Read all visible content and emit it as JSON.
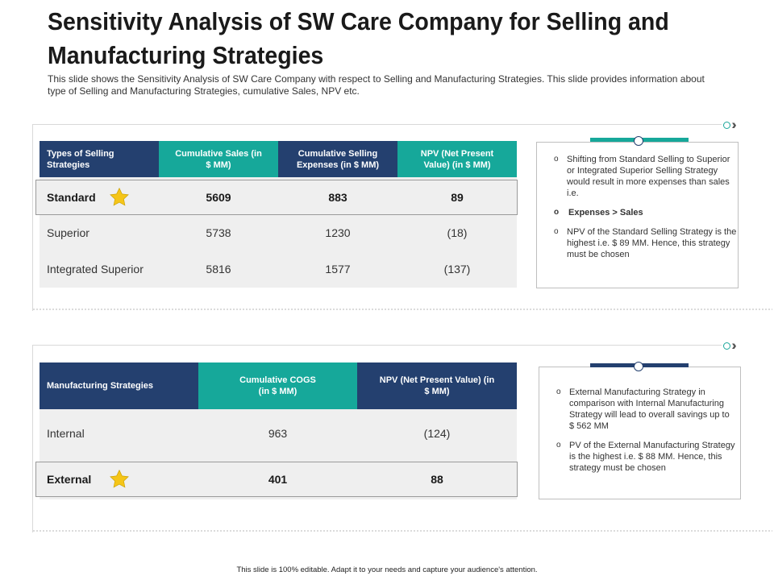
{
  "title": "Sensitivity Analysis of SW Care Company for Selling and Manufacturing Strategies",
  "subtitle": "This slide shows the Sensitivity Analysis of SW Care Company with respect to Selling and Manufacturing Strategies. This slide provides information about type of Selling and Manufacturing Strategies, cumulative Sales, NPV etc.",
  "selling": {
    "headers": [
      "Types of Selling Strategies",
      "Cumulative Sales (in $ MM)",
      "Cumulative Selling Expenses (in $ MM)",
      "NPV (Net Present Value) (in $ MM)"
    ],
    "rows": [
      {
        "name": "Standard",
        "sales": "5609",
        "expenses": "883",
        "npv": "89"
      },
      {
        "name": "Superior",
        "sales": "5738",
        "expenses": "1230",
        "npv": "(18)"
      },
      {
        "name": "Integrated Superior",
        "sales": "5816",
        "expenses": "1577",
        "npv": "(137)"
      }
    ],
    "notes": [
      "Shifting from Standard Selling to Superior or Integrated Superior Selling Strategy would result in more expenses than sales i.e.",
      "Expenses > Sales",
      "NPV of the Standard Selling Strategy is the highest i.e. $ 89 MM.  Hence, this strategy must be chosen"
    ]
  },
  "manufacturing": {
    "headers": [
      "Manufacturing Strategies",
      "Cumulative COGS (in $ MM)",
      "NPV (Net Present Value) (in $ MM)"
    ],
    "rows": [
      {
        "name": "Internal",
        "cogs": "963",
        "npv": "(124)"
      },
      {
        "name": "External",
        "cogs": "401",
        "npv": "88"
      }
    ],
    "notes": [
      "External Manufacturing Strategy in comparison with Internal Manufacturing Strategy will lead to overall savings up to $ 562 MM",
      "PV of the External Manufacturing Strategy is the highest i.e. $ 88 MM. Hence, this strategy must be chosen"
    ]
  },
  "footer": "This slide is 100% editable. Adapt it to your needs and capture your audience's attention.",
  "colors": {
    "navy": "#24406f",
    "teal": "#16a89a",
    "star": "#f5c518"
  }
}
